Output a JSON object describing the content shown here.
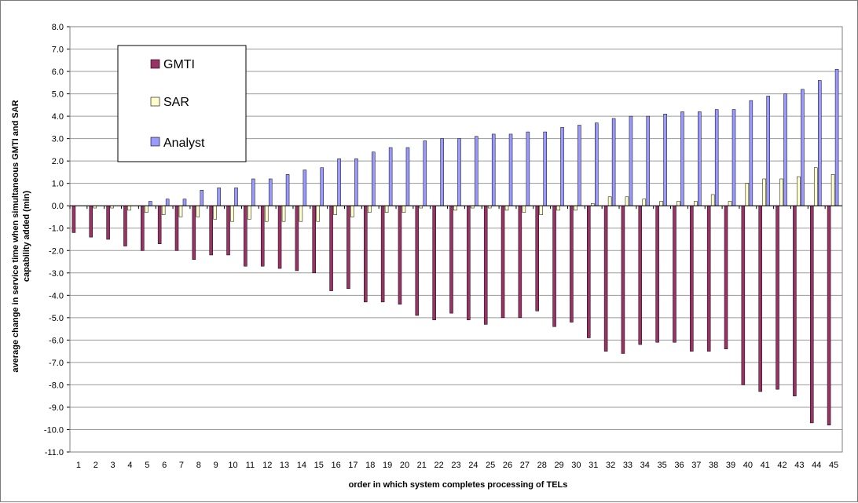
{
  "chart_data": {
    "type": "bar",
    "xlabel": "order in which system completes processing of TELs",
    "ylabel_lines": [
      "average change in service time when simultaneous GMTI and SAR",
      "capability added   (min)"
    ],
    "ylim": [
      -11,
      8
    ],
    "ytick_step": 1,
    "ytick_labels": [
      "8.0",
      "7.0",
      "6.0",
      "5.0",
      "4.0",
      "3.0",
      "2.0",
      "1.0",
      "0.0",
      "-1.0",
      "-2.0",
      "-3.0",
      "-4.0",
      "-5.0",
      "-6.0",
      "-7.0",
      "-8.0",
      "-9.0",
      "-10.0",
      "-11.0"
    ],
    "grid": true,
    "legend_position": "upper-left",
    "categories": [
      "1",
      "2",
      "3",
      "4",
      "5",
      "6",
      "7",
      "8",
      "9",
      "10",
      "11",
      "12",
      "13",
      "14",
      "15",
      "16",
      "17",
      "18",
      "19",
      "20",
      "21",
      "22",
      "23",
      "24",
      "25",
      "26",
      "27",
      "28",
      "29",
      "30",
      "31",
      "32",
      "33",
      "34",
      "35",
      "36",
      "37",
      "38",
      "39",
      "40",
      "41",
      "42",
      "43",
      "44",
      "45"
    ],
    "series": [
      {
        "name": "GMTI",
        "color": "#993366",
        "values": [
          -1.2,
          -1.4,
          -1.5,
          -1.8,
          -2.0,
          -1.7,
          -2.0,
          -2.4,
          -2.2,
          -2.2,
          -2.7,
          -2.7,
          -2.8,
          -2.9,
          -3.0,
          -3.8,
          -3.7,
          -4.3,
          -4.3,
          -4.4,
          -4.9,
          -5.1,
          -4.8,
          -5.1,
          -5.3,
          -5.0,
          -5.0,
          -4.7,
          -5.4,
          -5.2,
          -5.9,
          -6.5,
          -6.6,
          -6.2,
          -6.1,
          -6.1,
          -6.5,
          -6.5,
          -6.4,
          -8.0,
          -8.3,
          -8.2,
          -8.5,
          -9.7,
          -9.8
        ]
      },
      {
        "name": "SAR",
        "color": "#ffffcc",
        "values": [
          0.0,
          -0.1,
          -0.1,
          -0.2,
          -0.3,
          -0.4,
          -0.5,
          -0.5,
          -0.6,
          -0.7,
          -0.6,
          -0.7,
          -0.7,
          -0.7,
          -0.7,
          -0.4,
          -0.5,
          -0.3,
          -0.3,
          -0.3,
          -0.1,
          0.0,
          -0.2,
          -0.1,
          -0.1,
          -0.2,
          -0.3,
          -0.4,
          -0.2,
          -0.2,
          0.1,
          0.4,
          0.4,
          0.3,
          0.2,
          0.2,
          0.2,
          0.5,
          0.2,
          1.0,
          1.2,
          1.2,
          1.3,
          1.7,
          1.4
        ]
      },
      {
        "name": "Analyst",
        "color": "#9999ff",
        "values": [
          0.0,
          0.0,
          0.0,
          0.0,
          0.2,
          0.3,
          0.3,
          0.7,
          0.8,
          0.8,
          1.2,
          1.2,
          1.4,
          1.6,
          1.7,
          2.1,
          2.1,
          2.4,
          2.6,
          2.6,
          2.9,
          3.0,
          3.0,
          3.1,
          3.2,
          3.2,
          3.3,
          3.3,
          3.5,
          3.6,
          3.7,
          3.9,
          4.0,
          4.0,
          4.1,
          4.2,
          4.2,
          4.3,
          4.3,
          4.7,
          4.9,
          5.0,
          5.2,
          5.6,
          6.1
        ]
      }
    ]
  }
}
